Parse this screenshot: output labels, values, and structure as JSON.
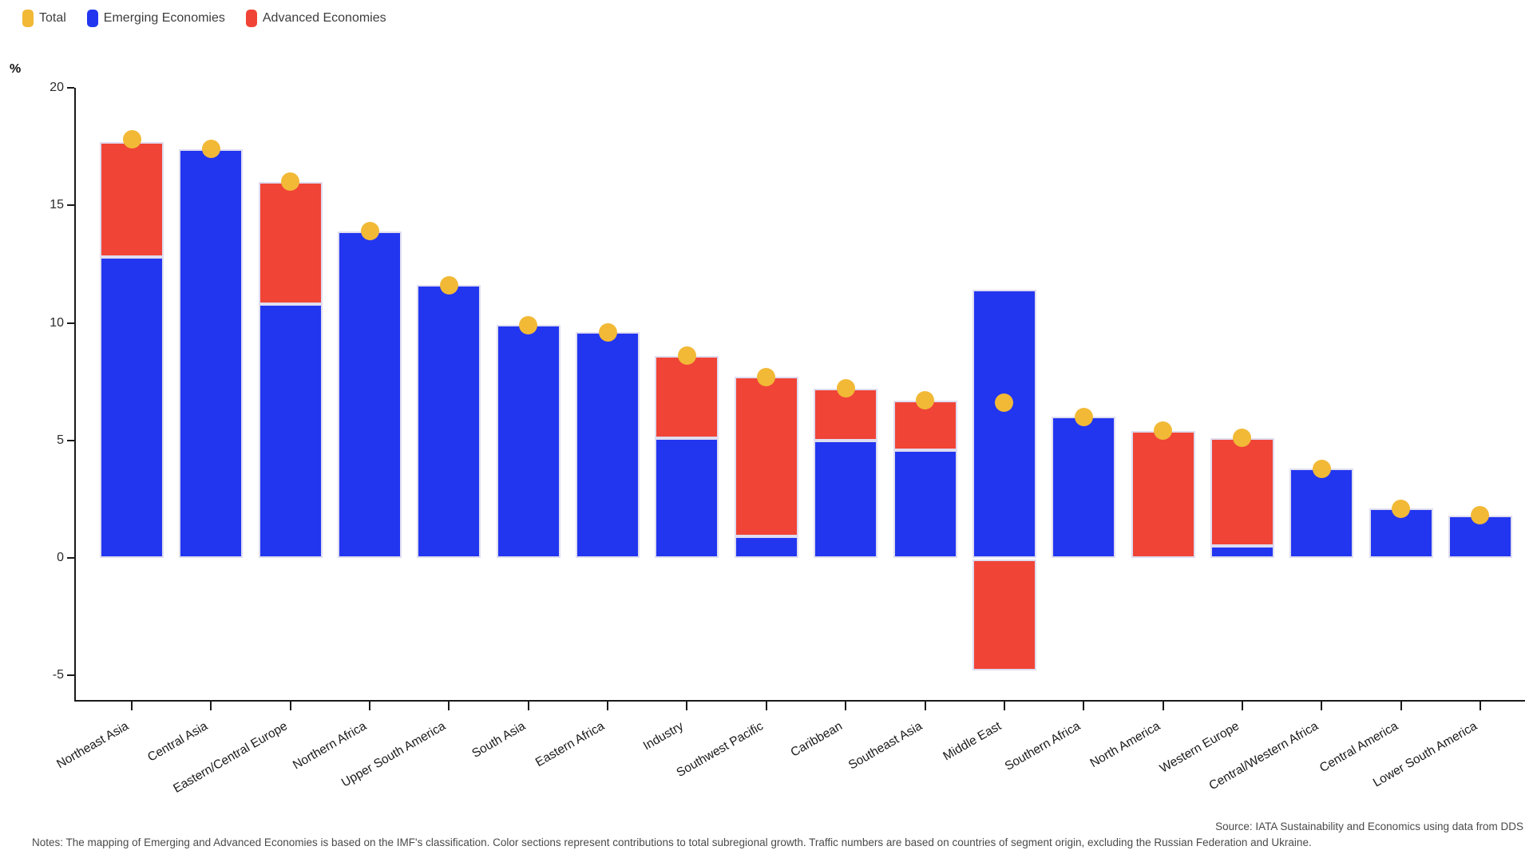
{
  "legend": {
    "items": [
      {
        "id": "total",
        "label": "Total",
        "color": "#F2B936"
      },
      {
        "id": "emerging",
        "label": "Emerging Economies",
        "color": "#2236F0"
      },
      {
        "id": "advanced",
        "label": "Advanced Economies",
        "color": "#F04437"
      }
    ]
  },
  "y_axis": {
    "unit_label": "%",
    "ticks": [
      20,
      15,
      10,
      5,
      0,
      -5
    ]
  },
  "chart_data": {
    "type": "bar",
    "subtype": "stacked-bars-with-total-dots",
    "ylabel": "%",
    "ylim": [
      -6,
      20
    ],
    "grid": false,
    "legend_position": "top-left",
    "categories": [
      "Northeast Asia",
      "Central Asia",
      "Eastern/Central Europe",
      "Northern Africa",
      "Upper South America",
      "South Asia",
      "Eastern Africa",
      "Industry",
      "Southwest Pacific",
      "Caribbean",
      "Southeast Asia",
      "Middle East",
      "Southern Africa",
      "North America",
      "Western Europe",
      "Central/Western Africa",
      "Central America",
      "Lower South America"
    ],
    "series": [
      {
        "name": "Emerging Economies",
        "color": "#2236F0",
        "values": [
          12.8,
          17.4,
          10.8,
          13.9,
          11.6,
          9.9,
          9.6,
          5.1,
          0.9,
          5.0,
          4.6,
          11.4,
          6.0,
          0,
          0.5,
          3.8,
          2.1,
          1.8
        ]
      },
      {
        "name": "Advanced Economies",
        "color": "#F04437",
        "values": [
          4.9,
          0,
          5.2,
          0,
          0,
          0,
          0,
          3.5,
          6.8,
          2.2,
          2.1,
          -4.8,
          0,
          5.4,
          4.6,
          0,
          0,
          0
        ]
      }
    ],
    "dots": {
      "name": "Total",
      "color": "#F2B936",
      "values": [
        17.8,
        17.4,
        16.0,
        13.9,
        11.6,
        9.9,
        9.6,
        8.6,
        7.7,
        7.2,
        6.7,
        6.6,
        6.0,
        5.4,
        5.1,
        3.8,
        2.1,
        1.8
      ]
    }
  },
  "footer": {
    "source": "Source: IATA Sustainability and Economics using data from DDS",
    "notes": "Notes: The mapping of Emerging and Advanced Economies is based on the IMF's classification. Color sections represent contributions to total subregional growth. Traffic numbers are based on countries of segment origin, excluding the Russian Federation and Ukraine."
  }
}
